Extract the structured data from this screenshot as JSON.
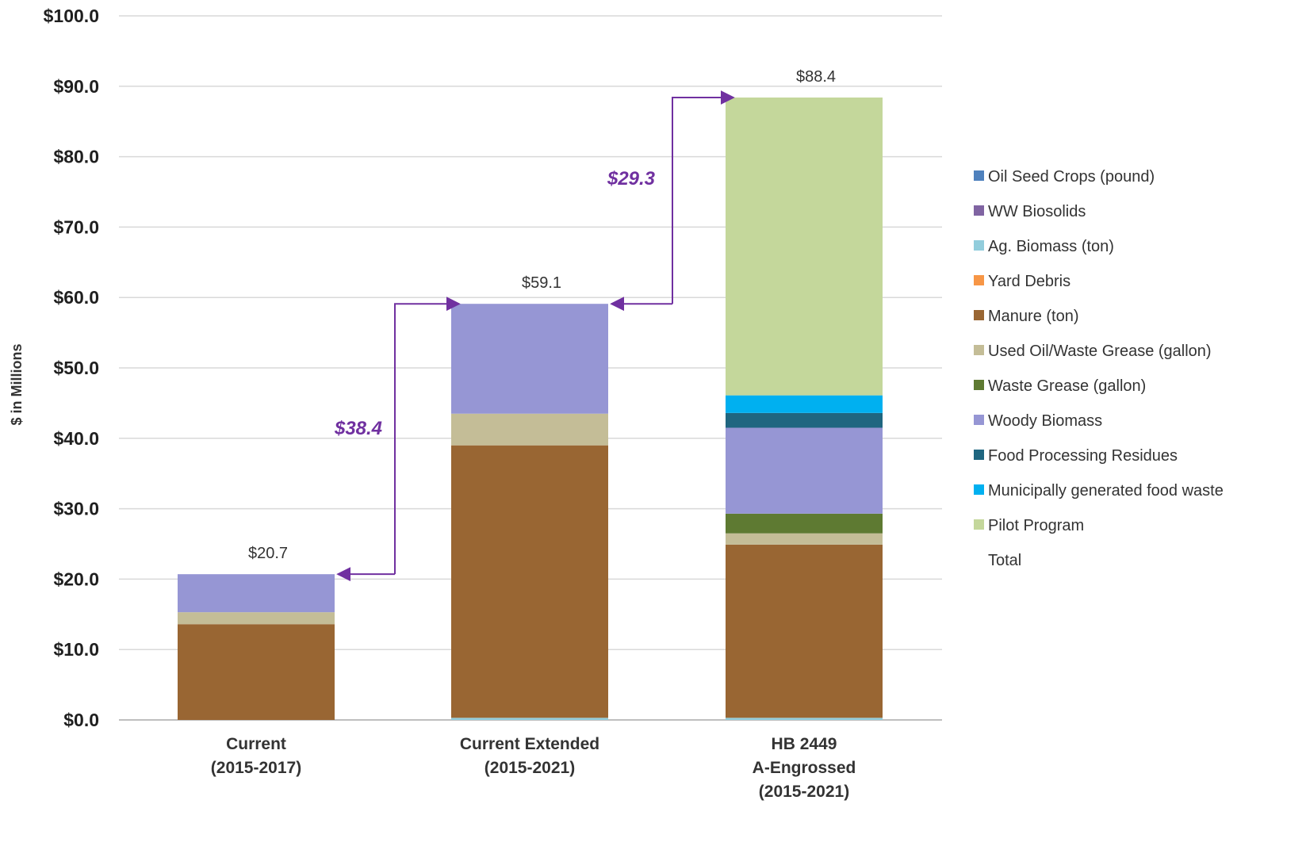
{
  "chart_data": {
    "type": "bar",
    "stacked": true,
    "title": "",
    "xlabel": "",
    "ylabel": "$ in Millions",
    "ylim": [
      0,
      100
    ],
    "yticks": [
      0,
      10,
      20,
      30,
      40,
      50,
      60,
      70,
      80,
      90,
      100
    ],
    "ytick_labels": [
      "$0.0",
      "$10.0",
      "$20.0",
      "$30.0",
      "$40.0",
      "$50.0",
      "$60.0",
      "$70.0",
      "$80.0",
      "$90.0",
      "$100.0"
    ],
    "grid": true,
    "legend_position": "right",
    "categories": [
      [
        "Current",
        "(2015-2017)"
      ],
      [
        "Current Extended",
        "(2015-2021)"
      ],
      [
        "HB 2449",
        "A-Engrossed",
        "(2015-2021)"
      ]
    ],
    "series": [
      {
        "name": "Oil Seed Crops (pound)",
        "color": "#4f81bd",
        "values": [
          0,
          0,
          0
        ]
      },
      {
        "name": "WW Biosolids",
        "color": "#8064a2",
        "values": [
          0,
          0,
          0
        ]
      },
      {
        "name": "Ag. Biomass (ton)",
        "color": "#92cddc",
        "values": [
          0,
          0.3,
          0.3
        ]
      },
      {
        "name": "Yard Debris",
        "color": "#f79646",
        "values": [
          0,
          0,
          0
        ]
      },
      {
        "name": "Manure (ton)",
        "color": "#996633",
        "values": [
          13.6,
          38.7,
          24.6
        ]
      },
      {
        "name": "Used Oil/Waste Grease (gallon)",
        "color": "#c4bd97",
        "values": [
          1.7,
          4.5,
          1.6
        ]
      },
      {
        "name": "Waste Grease (gallon)",
        "color": "#5e7a32",
        "values": [
          0,
          0,
          2.8
        ]
      },
      {
        "name": "Woody Biomass",
        "color": "#9696d4",
        "values": [
          5.4,
          15.6,
          12.2
        ]
      },
      {
        "name": "Food Processing Residues",
        "color": "#1f6680",
        "values": [
          0,
          0,
          2.1
        ]
      },
      {
        "name": "Municipally generated food waste",
        "color": "#00b0f0",
        "values": [
          0,
          0,
          2.5
        ]
      },
      {
        "name": "Pilot Program",
        "color": "#c4d79b",
        "values": [
          0,
          0,
          42.3
        ]
      },
      {
        "name": "Total",
        "color": "",
        "values": [
          20.7,
          59.1,
          88.4
        ]
      }
    ],
    "totals": [
      20.7,
      59.1,
      88.4
    ],
    "total_labels": [
      "$20.7",
      "$59.1",
      "$88.4"
    ],
    "annotations": [
      {
        "text": "$38.4",
        "from_category": 0,
        "to_category": 1,
        "color": "#7030a0"
      },
      {
        "text": "$29.3",
        "from_category": 1,
        "to_category": 2,
        "color": "#7030a0"
      }
    ]
  }
}
